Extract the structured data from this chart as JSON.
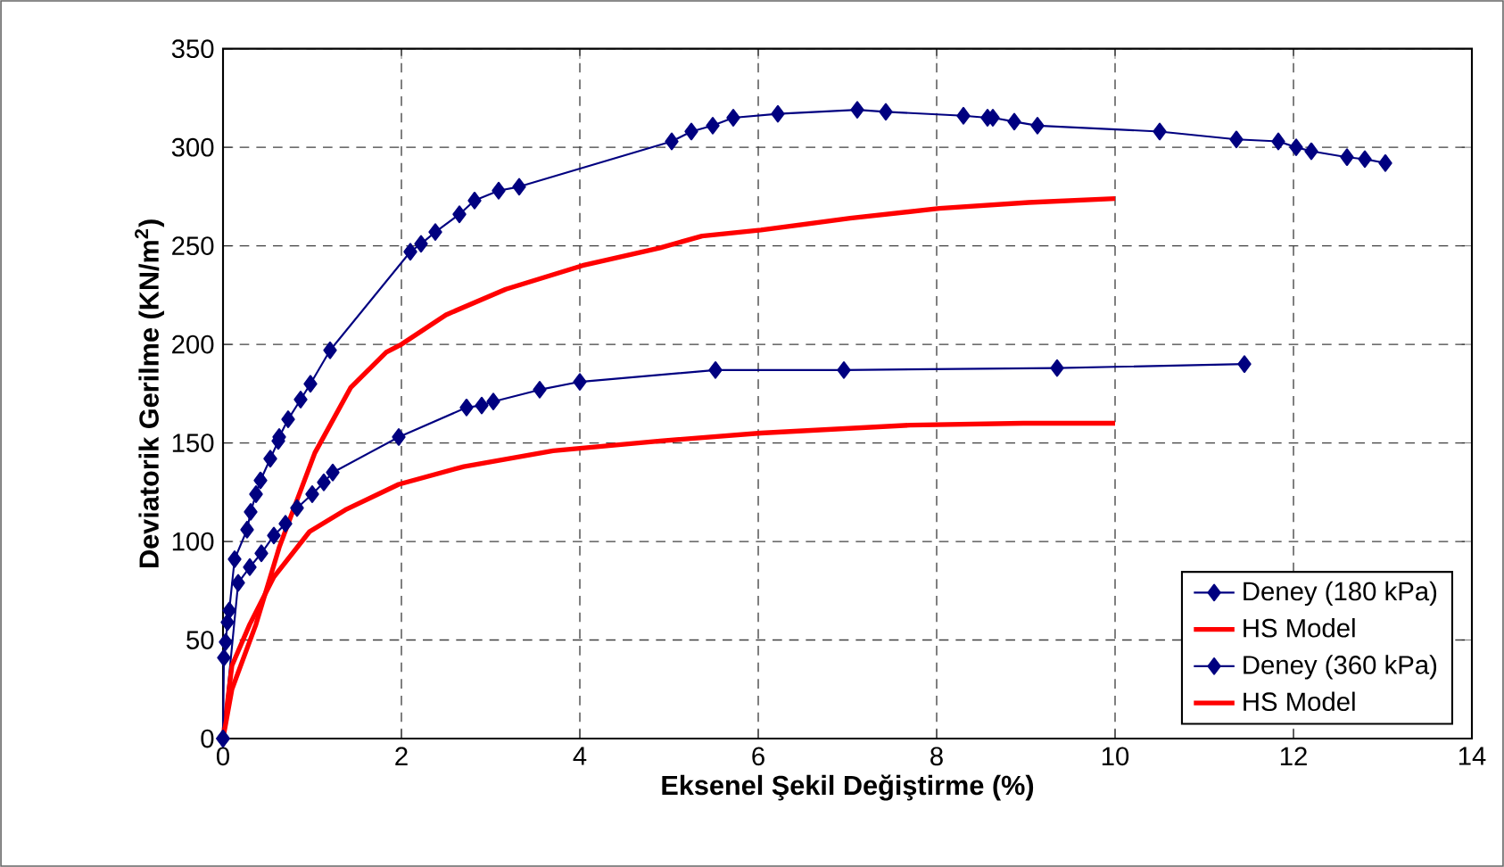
{
  "chart_data": {
    "type": "line",
    "xlabel": "Eksenel Şekil Değiştirme (%)",
    "ylabel": "Deviatorik Gerilme (KN/m$^{2}$)",
    "xlim": [
      0,
      14
    ],
    "ylim": [
      0,
      350
    ],
    "xticks": [
      0,
      2,
      4,
      6,
      8,
      10,
      12,
      14
    ],
    "yticks": [
      0,
      50,
      100,
      150,
      200,
      250,
      300,
      350
    ],
    "grid": true,
    "legend": "bottom right",
    "line_style": "solid",
    "series": [
      {
        "name": "Deney (180 kPa)",
        "color": "#000080",
        "marker": "diamond",
        "x": [
          0,
          0.17,
          0.3,
          0.43,
          0.57,
          0.7,
          0.83,
          1.0,
          1.13,
          1.23,
          1.97,
          2.73,
          2.9,
          3.03,
          3.55,
          4.0,
          5.52,
          6.96,
          9.35,
          11.45
        ],
        "values": [
          0,
          79,
          87,
          94,
          103,
          109,
          117,
          124,
          130,
          135,
          153,
          168,
          169,
          171,
          177,
          181,
          187,
          187,
          188,
          190
        ]
      },
      {
        "name": "HS Model",
        "color": "#ff0000",
        "marker": "none",
        "x": [
          0,
          0.1,
          0.3,
          0.57,
          0.97,
          1.37,
          1.97,
          2.7,
          3.7,
          4.9,
          6.03,
          7.7,
          8.97,
          10.0
        ],
        "values": [
          0,
          37,
          58,
          82,
          105,
          116,
          129,
          138,
          146,
          151,
          155,
          159,
          160,
          160
        ]
      },
      {
        "name": "Deney (360 kPa)",
        "color": "#000080",
        "marker": "diamond",
        "x": [
          0,
          0.01,
          0.03,
          0.05,
          0.07,
          0.13,
          0.27,
          0.31,
          0.37,
          0.42,
          0.53,
          0.62,
          0.63,
          0.73,
          0.87,
          0.98,
          1.2,
          2.1,
          2.22,
          2.38,
          2.65,
          2.82,
          3.09,
          3.32,
          5.03,
          5.25,
          5.49,
          5.72,
          6.22,
          7.11,
          7.43,
          8.3,
          8.57,
          8.63,
          8.87,
          9.13,
          10.5,
          11.36,
          11.83,
          12.03,
          12.2,
          12.6,
          12.8,
          13.03
        ],
        "values": [
          0,
          41,
          49,
          59,
          65,
          91,
          106,
          115,
          124,
          131,
          142,
          151,
          153,
          162,
          172,
          180,
          197,
          247,
          251,
          257,
          266,
          273,
          278,
          280,
          303,
          308,
          311,
          315,
          317,
          319,
          318,
          316,
          315,
          315,
          313,
          311,
          308,
          304,
          303,
          300,
          298,
          295,
          294,
          292
        ]
      },
      {
        "name": "HS Model",
        "color": "#ff0000",
        "marker": "none",
        "x": [
          0,
          0.1,
          0.37,
          0.63,
          1.03,
          1.43,
          1.83,
          2.0,
          2.5,
          3.17,
          4.03,
          4.9,
          5.37,
          6.03,
          7.03,
          8.03,
          9.03,
          10.0
        ],
        "values": [
          0,
          25,
          58,
          97,
          145,
          178,
          196,
          200,
          215,
          228,
          240,
          249,
          255,
          258,
          264,
          269,
          272,
          274
        ]
      }
    ]
  }
}
